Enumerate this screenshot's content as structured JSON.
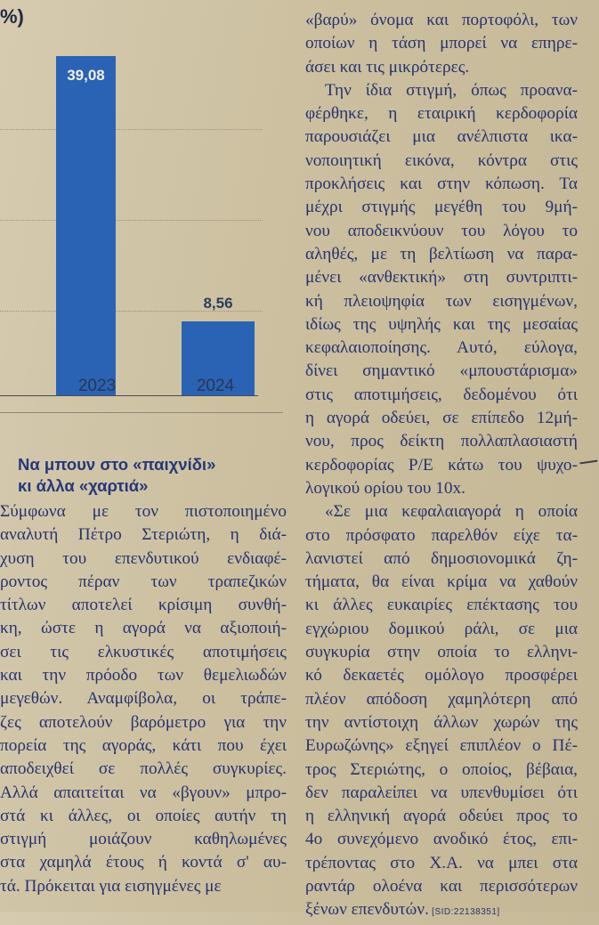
{
  "chart_data": {
    "type": "bar",
    "categories": [
      "2023",
      "2024"
    ],
    "values": [
      39.08,
      8.56
    ],
    "value_labels": [
      "39,08",
      "8,56"
    ],
    "corner_text": "%)",
    "colors": {
      "bar": "#2a63b4"
    }
  },
  "article": {
    "heading": [
      "Να μπουν στο «παιχνίδι»",
      "κι άλλα «χαρτιά»"
    ],
    "left_lines": [
      "Σύμφωνα με τον πιστοποιημένο",
      "αναλυτή Πέτρο Στεριώτη, η διά-",
      "χυση του επενδυτικού ενδιαφέ-",
      "ροντος πέραν των τραπεζικών",
      "τίτλων αποτελεί κρίσιμη συνθή-",
      "κη, ώστε η αγορά να αξιοποιή-",
      "σει τις ελκυστικές αποτιμήσεις",
      "και την πρόοδο των θεμελιωδών",
      "μεγεθών. Αναμφίβολα, οι τράπε-",
      "ζες αποτελούν βαρόμετρο για την",
      "πορεία της αγοράς, κάτι που έχει",
      "αποδειχθεί σε πολλές συγκυρίες.",
      "Αλλά απαιτείται να «βγουν» μπρο-",
      "στά κι άλλες, οι οποίες αυτήν τη",
      "στιγμή μοιάζουν καθηλωμένες",
      "στα χαμηλά έτους ή κοντά σ' αυ-",
      "τά. Πρόκειται για εισηγμένες με"
    ],
    "right_lines": [
      "«βαρύ» όνομα και πορτοφόλι, των",
      "οποίων η τάση μπορεί να επηρε-",
      "άσει και τις μικρότερες.",
      "Την ίδια στιγμή, όπως προανα-",
      "φέρθηκε, η εταιρική κερδοφορία",
      "παρουσιάζει μια ανέλπιστα ικα-",
      "νοποιητική εικόνα, κόντρα στις",
      "προκλήσεις και στην κόπωση. Τα",
      "μέχρι στιγμής μεγέθη του 9μή-",
      "νου αποδεικνύουν του λόγου το",
      "αληθές, με τη βελτίωση να παρα-",
      "μένει «ανθεκτική» στη συντριπτι-",
      "κή πλειοψηφία των εισηγμένων,",
      "ιδίως της υψηλής και της μεσαίας",
      "κεφαλαιοποίησης. Αυτό, εύλογα,",
      "δίνει σημαντικό «μπουστάρισμα»",
      "στις αποτιμήσεις, δεδομένου ότι",
      "η αγορά οδεύει, σε επίπεδο 12μή-",
      "νου, προς δείκτη πολλαπλασιαστή",
      "κερδοφορίας Ρ/Ε κάτω του ψυχο-",
      "λογικού ορίου του 10x.",
      "«Σε μια κεφαλαιαγορά η οποία",
      "στο πρόσφατο παρελθόν είχε τα-",
      "λανιστεί από δημοσιονομικά ζη-",
      "τήματα, θα είναι κρίμα να χαθούν",
      "κι άλλες ευκαιρίες επέκτασης του",
      "εγχώριου δομικού ράλι, σε μια",
      "συγκυρία στην οποία το ελληνι-",
      "κό δεκαετές ομόλογο προσφέρει",
      "πλέον απόδοση χαμηλότερη από",
      "την αντίστοιχη άλλων χωρών της",
      "Ευρωζώνης» εξηγεί επιπλέον ο Πέ-",
      "τρος Στεριώτης, ο οποίος, βέβαια,",
      "δεν παραλείπει να υπενθυμίσει ότι",
      "η ελληνική αγορά οδεύει προς το",
      "4ο συνεχόμενο ανοδικό έτος, επι-",
      "τρέποντας στο Χ.Α. να μπει στα",
      "ραντάρ ολοένα και περισσότερων",
      "ξένων επενδυτών."
    ],
    "sid_text": "[SID:22138351]"
  }
}
